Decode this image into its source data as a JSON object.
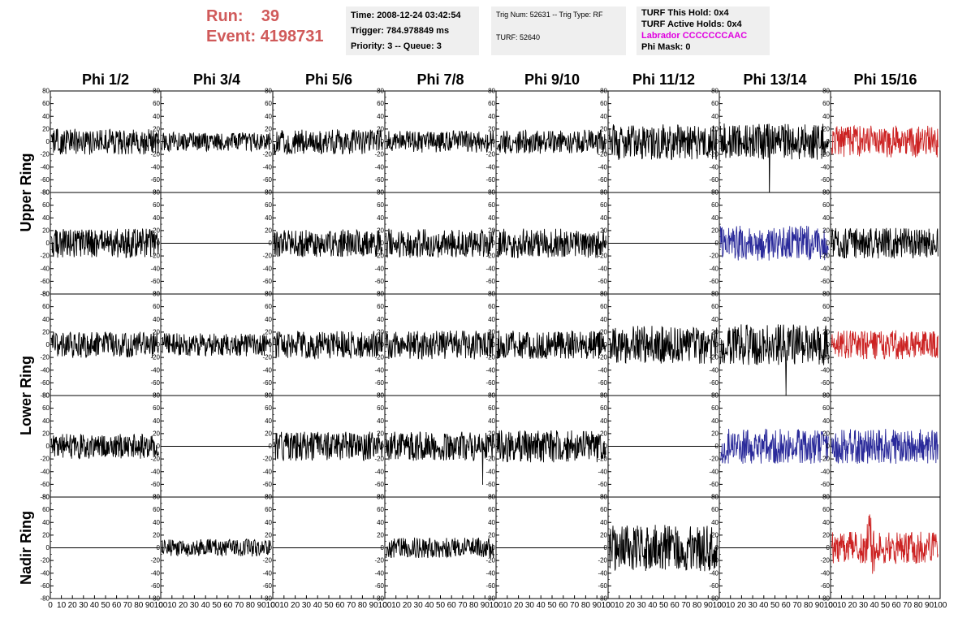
{
  "header": {
    "run_label": "Run:",
    "run_value": "39",
    "event_label": "Event:",
    "event_value": "4198731"
  },
  "timing_box": {
    "time": "Time: 2008-12-24 03:42:54",
    "trigger": "Trigger: 784.978849 ms",
    "priority": "Priority: 3 -- Queue: 3"
  },
  "trig_box": {
    "trig": "Trig Num: 52631 -- Trig Type: RF",
    "turf": "TURF: 52640"
  },
  "turf_box": {
    "this_hold": "TURF This Hold: 0x4",
    "active_holds": "TURF Active Holds: 0x4",
    "labrador": "Labrador CCCCCCCAAC",
    "phi_mask": "Phi Mask: 0"
  },
  "chart_data": {
    "type": "line",
    "columns": [
      "Phi 1/2",
      "Phi 3/4",
      "Phi 5/6",
      "Phi 7/8",
      "Phi 9/10",
      "Phi 11/12",
      "Phi 13/14",
      "Phi 15/16"
    ],
    "ring_labels": [
      {
        "label": "Upper Ring",
        "rows": [
          0,
          1
        ]
      },
      {
        "label": "Lower Ring",
        "rows": [
          2,
          3
        ]
      },
      {
        "label": "Nadir Ring",
        "rows": [
          4,
          4
        ]
      }
    ],
    "ylim": [
      -80,
      80
    ],
    "yticks": [
      80,
      60,
      40,
      20,
      0,
      -20,
      -40,
      -60,
      -80
    ],
    "xlim": [
      0,
      100
    ],
    "xticks": [
      0,
      10,
      20,
      30,
      40,
      50,
      60,
      70,
      80,
      90,
      100
    ],
    "colors": {
      "black": "#000000",
      "red": "#cc2222",
      "blue": "#2a2a9a"
    },
    "panels": [
      [
        {
          "color": "black",
          "amp": 18
        },
        {
          "color": "black",
          "amp": 13
        },
        {
          "color": "black",
          "amp": 17
        },
        {
          "color": "black",
          "amp": 15
        },
        {
          "color": "black",
          "amp": 17
        },
        {
          "color": "black",
          "amp": 25
        },
        {
          "color": "black",
          "amp": 25,
          "spike": {
            "x": 45,
            "y": -80
          }
        },
        {
          "color": "red",
          "amp": 22
        }
      ],
      [
        {
          "color": "black",
          "amp": 20
        },
        {
          "color": "black",
          "amp": 0,
          "flat": true
        },
        {
          "color": "black",
          "amp": 19
        },
        {
          "color": "black",
          "amp": 20
        },
        {
          "color": "black",
          "amp": 20
        },
        {
          "color": "black",
          "amp": 0,
          "flat": true
        },
        {
          "color": "blue",
          "amp": 24
        },
        {
          "color": "black",
          "amp": 21
        }
      ],
      [
        {
          "color": "black",
          "amp": 18
        },
        {
          "color": "black",
          "amp": 16
        },
        {
          "color": "black",
          "amp": 19
        },
        {
          "color": "black",
          "amp": 20
        },
        {
          "color": "black",
          "amp": 20
        },
        {
          "color": "black",
          "amp": 26
        },
        {
          "color": "black",
          "amp": 28,
          "spike": {
            "x": 60,
            "y": -80
          }
        },
        {
          "color": "red",
          "amp": 20
        }
      ],
      [
        {
          "color": "black",
          "amp": 17
        },
        {
          "color": "black",
          "amp": 0,
          "flat": true
        },
        {
          "color": "black",
          "amp": 20
        },
        {
          "color": "black",
          "amp": 20,
          "spike": {
            "x": 88,
            "y": -60
          }
        },
        {
          "color": "black",
          "amp": 22
        },
        {
          "color": "black",
          "amp": 0,
          "flat": true
        },
        {
          "color": "blue",
          "amp": 24
        },
        {
          "color": "blue",
          "amp": 24
        }
      ],
      [
        {
          "color": "black",
          "amp": 0,
          "flat": true
        },
        {
          "color": "black",
          "amp": 12
        },
        {
          "color": "black",
          "amp": 0,
          "flat": true
        },
        {
          "color": "black",
          "amp": 14
        },
        {
          "color": "black",
          "amp": 0,
          "flat": true
        },
        {
          "color": "black",
          "amp": 32
        },
        {
          "color": "black",
          "amp": 0,
          "flat": true
        },
        {
          "color": "red",
          "amp": 22,
          "burst": {
            "x": 36,
            "amp": 50
          }
        }
      ]
    ]
  }
}
